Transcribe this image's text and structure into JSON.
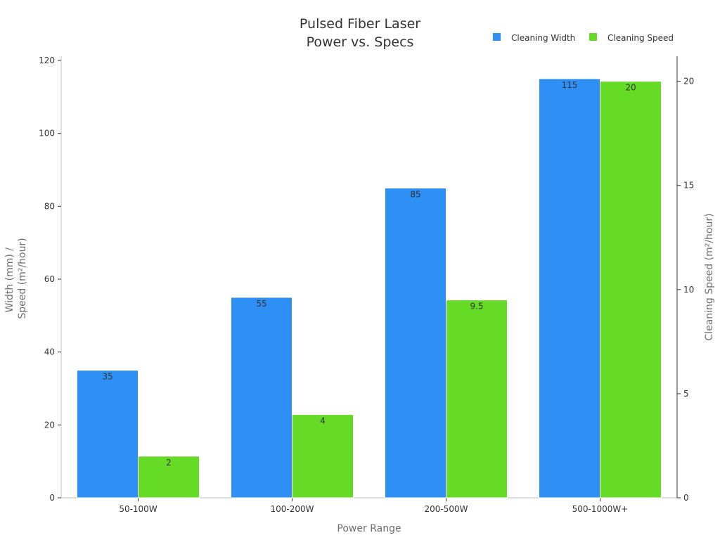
{
  "chart_data": {
    "type": "bar",
    "title_lines": [
      "Pulsed Fiber Laser",
      "Power vs. Specs"
    ],
    "xlabel": "Power Range",
    "ylabel_lines": [
      "Width (mm) /",
      "Speed (m²/hour)"
    ],
    "y2label": "Cleaning Speed (m²/hour)",
    "categories": [
      "50-100W",
      "100-200W",
      "200-500W",
      "500-1000W+"
    ],
    "ylim": [
      0,
      120
    ],
    "y2lim": [
      0,
      21
    ],
    "yticks": [
      0,
      20,
      40,
      60,
      80,
      100,
      120
    ],
    "y2ticks": [
      0,
      5,
      10,
      15,
      20
    ],
    "legend_position": "top-right",
    "grid": false,
    "series": [
      {
        "name": "Cleaning Width",
        "axis": "left",
        "color": "#2e8ff5",
        "values": [
          35,
          55,
          85,
          115
        ],
        "labels": [
          "35",
          "55",
          "85",
          "115"
        ]
      },
      {
        "name": "Cleaning Speed",
        "axis": "right",
        "color": "#66db26",
        "values": [
          2,
          4,
          9.5,
          20
        ],
        "labels": [
          "2",
          "4",
          "9.5",
          "20"
        ]
      }
    ]
  }
}
